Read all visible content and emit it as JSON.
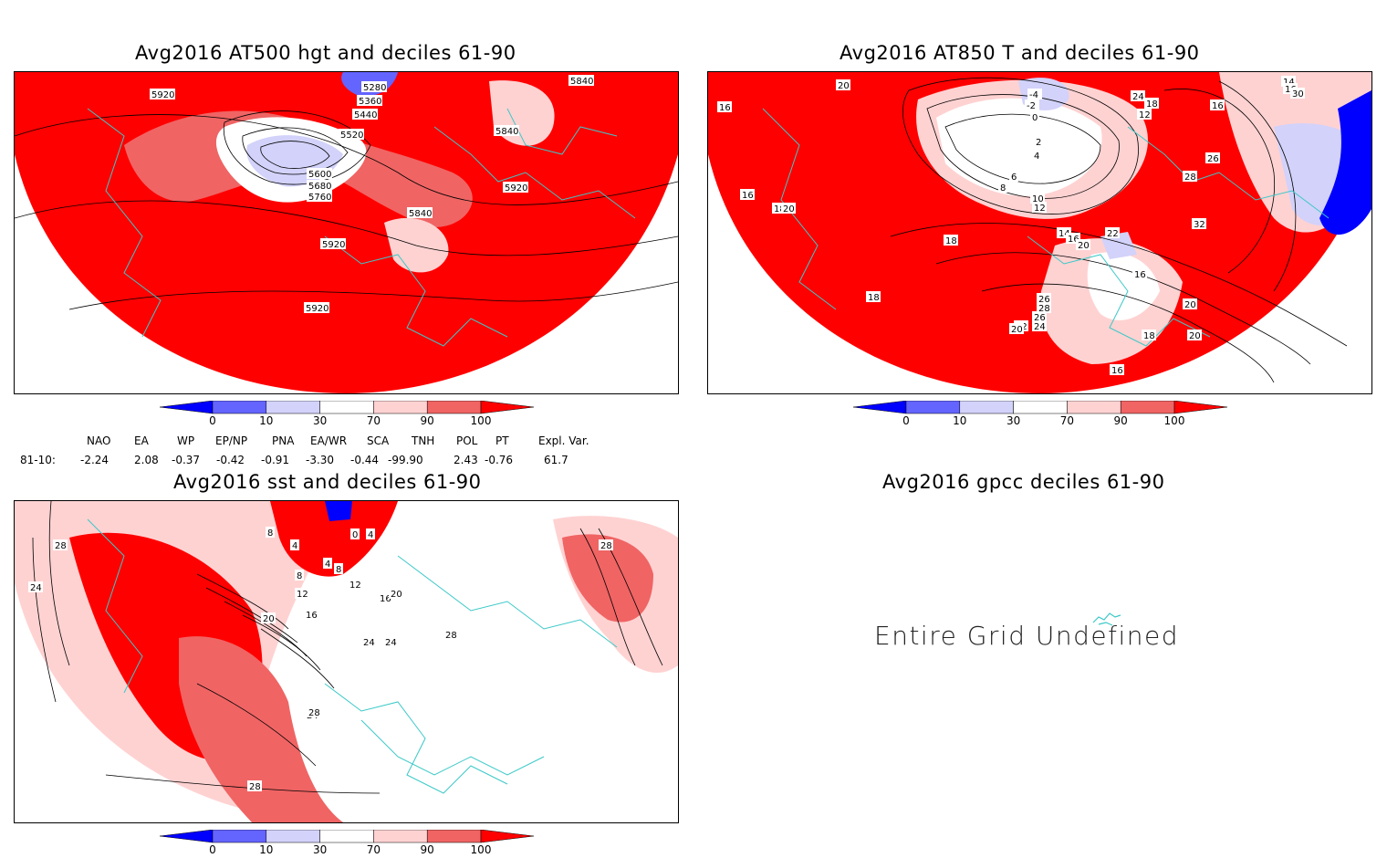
{
  "panels": {
    "hgt500": {
      "title": "Avg2016 AT500 hgt and deciles 61-90",
      "contour_labels": [
        "5280",
        "5360",
        "5440",
        "5520",
        "5600",
        "5680",
        "5760",
        "5840",
        "5840",
        "5840",
        "5920",
        "5920",
        "5920",
        "5920"
      ]
    },
    "t850": {
      "title": "Avg2016 AT850 T and deciles 61-90",
      "contour_labels": [
        "20",
        "16",
        "16",
        "18",
        "20",
        "18",
        "18",
        "-4",
        "-2",
        "0",
        "2",
        "4",
        "6",
        "8",
        "10",
        "12",
        "14",
        "16",
        "20",
        "22",
        "24",
        "18",
        "12",
        "14",
        "16",
        "16",
        "26",
        "28",
        "32",
        "30",
        "16",
        "26",
        "28",
        "26",
        "24",
        "22",
        "20",
        "20",
        "18",
        "16",
        "20"
      ]
    },
    "sst": {
      "title": "Avg2016 sst and deciles 61-90",
      "contour_labels": [
        "28",
        "24",
        "8",
        "4",
        "8",
        "12",
        "16",
        "20",
        "24",
        "24",
        "28",
        "0",
        "4",
        "4",
        "8",
        "12",
        "16",
        "20",
        "24",
        "28",
        "28",
        "28"
      ]
    },
    "gpcc": {
      "title": "Avg2016 gpcc deciles 61-90",
      "message": "Entire Grid Undefined"
    }
  },
  "colorbar": {
    "ticks": [
      "0",
      "10",
      "30",
      "70",
      "90",
      "100"
    ],
    "colors": [
      "#0000ff",
      "#6464ff",
      "#d2d2fa",
      "#ffffff",
      "#ffd2d2",
      "#f06464",
      "#ff0000"
    ]
  },
  "indices": {
    "headers": [
      "NAO",
      "EA",
      "WP",
      "EP/NP",
      "PNA",
      "EA/WR",
      "SCA",
      "TNH",
      "POL",
      "PT",
      "Expl. Var."
    ],
    "row_label": "81-10:",
    "values": [
      "-2.24",
      "2.08",
      "-0.37",
      "-0.42",
      "-0.91",
      "-3.30",
      "-0.44",
      "-99.90",
      "2.43",
      "-0.76",
      "61.7"
    ]
  },
  "colors": {
    "red": "#ff0000",
    "mid_red": "#f06464",
    "light_red": "#ffd2d2",
    "blue": "#0000ff",
    "mid_blue": "#6464ff",
    "light_blue": "#d2d2fa",
    "coast": "#3cc8c8"
  }
}
